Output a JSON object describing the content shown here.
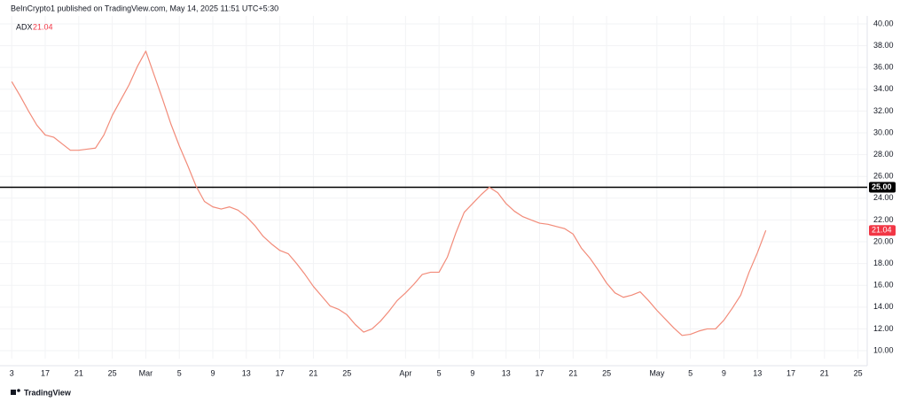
{
  "chart_data": {
    "type": "line",
    "title": "BeInCrypto1 published on TradingView.com, May 14, 2025 11:51 UTC+5:30",
    "footer": "TradingView",
    "series": [
      {
        "name": "ADX",
        "color": "#f28b79",
        "values": [
          34.7,
          33.4,
          32.0,
          30.7,
          29.8,
          29.6,
          29.0,
          28.4,
          28.4,
          28.5,
          28.6,
          29.8,
          31.6,
          33.0,
          34.4,
          36.1,
          37.5,
          35.3,
          33.1,
          30.8,
          28.8,
          27.0,
          25.1,
          23.7,
          23.2,
          23.0,
          23.2,
          22.9,
          22.3,
          21.5,
          20.5,
          19.8,
          19.2,
          18.9,
          18.0,
          17.0,
          15.9,
          15.0,
          14.1,
          13.8,
          13.3,
          12.4,
          11.7,
          12.0,
          12.7,
          13.6,
          14.6,
          15.3,
          16.1,
          17.0,
          17.2,
          17.2,
          18.6,
          20.8,
          22.7,
          23.5,
          24.3,
          25.0,
          24.5,
          23.5,
          22.8,
          22.3,
          22.0,
          21.7,
          21.6,
          21.4,
          21.2,
          20.7,
          19.4,
          18.5,
          17.4,
          16.2,
          15.3,
          14.9,
          15.1,
          15.4,
          14.6,
          13.7,
          12.9,
          12.1,
          11.4,
          11.5,
          11.8,
          12.0,
          12.0,
          12.8,
          13.9,
          15.1,
          17.2,
          19.0,
          21.04
        ]
      }
    ],
    "last_value_color": "#f23645",
    "hline": {
      "value": 25,
      "label": "25.00",
      "color": "#000000"
    },
    "xlim": [
      -1.4,
      102.1
    ],
    "xticks": [
      {
        "value": 0,
        "label": "3"
      },
      {
        "value": 4,
        "label": "17"
      },
      {
        "value": 8,
        "label": "21"
      },
      {
        "value": 12,
        "label": "25"
      },
      {
        "value": 16,
        "label": "Mar"
      },
      {
        "value": 20,
        "label": "5"
      },
      {
        "value": 24,
        "label": "9"
      },
      {
        "value": 28,
        "label": "13"
      },
      {
        "value": 32,
        "label": "17"
      },
      {
        "value": 36,
        "label": "21"
      },
      {
        "value": 40,
        "label": "25"
      },
      {
        "value": 47,
        "label": "Apr"
      },
      {
        "value": 51,
        "label": "5"
      },
      {
        "value": 55,
        "label": "9"
      },
      {
        "value": 59,
        "label": "13"
      },
      {
        "value": 63,
        "label": "17"
      },
      {
        "value": 67,
        "label": "21"
      },
      {
        "value": 71,
        "label": "25"
      },
      {
        "value": 77,
        "label": "May"
      },
      {
        "value": 81,
        "label": "5"
      },
      {
        "value": 85,
        "label": "9"
      },
      {
        "value": 89,
        "label": "13"
      },
      {
        "value": 93,
        "label": "17"
      },
      {
        "value": 97,
        "label": "21"
      },
      {
        "value": 101,
        "label": "25"
      }
    ],
    "ylim": [
      9.27,
      40.73
    ],
    "yticks": [
      {
        "value": 10,
        "label": "10.00"
      },
      {
        "value": 12,
        "label": "12.00"
      },
      {
        "value": 14,
        "label": "14.00"
      },
      {
        "value": 16,
        "label": "16.00"
      },
      {
        "value": 18,
        "label": "18.00"
      },
      {
        "value": 20,
        "label": "20.00"
      },
      {
        "value": 22,
        "label": "22.00"
      },
      {
        "value": 24,
        "label": "24.00"
      },
      {
        "value": 26,
        "label": "26.00"
      },
      {
        "value": 28,
        "label": "28.00"
      },
      {
        "value": 30,
        "label": "30.00"
      },
      {
        "value": 32,
        "label": "32.00"
      },
      {
        "value": 34,
        "label": "34.00"
      },
      {
        "value": 36,
        "label": "36.00"
      },
      {
        "value": 38,
        "label": "38.00"
      },
      {
        "value": 40,
        "label": "40.00"
      }
    ],
    "grid": true
  }
}
